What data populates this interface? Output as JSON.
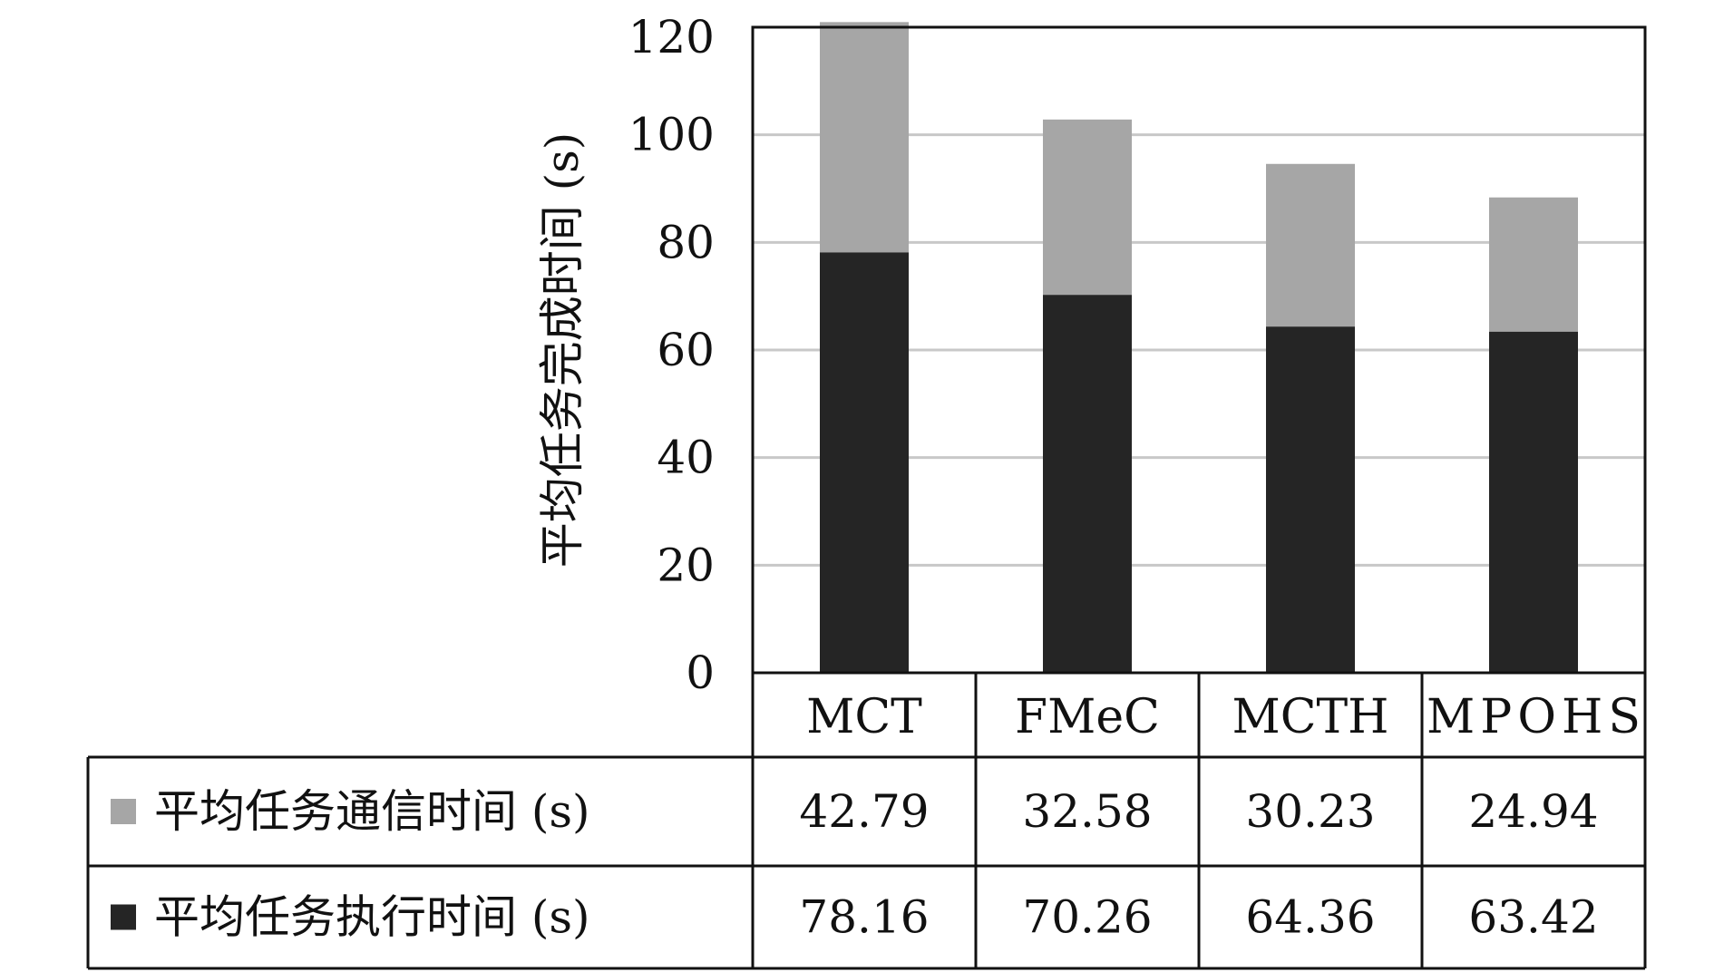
{
  "chart_data": {
    "type": "bar",
    "stacked": true,
    "categories": [
      "MCT",
      "FMeC",
      "MCTH",
      "MPOHS"
    ],
    "series": [
      {
        "name": "平均任务执行时间 (s)",
        "values": [
          78.16,
          70.26,
          64.36,
          63.42
        ],
        "color": "#252525",
        "legend_icon": "square-marker"
      },
      {
        "name": "平均任务通信时间 (s)",
        "values": [
          42.79,
          32.58,
          30.23,
          24.94
        ],
        "color": "#a6a6a6",
        "legend_icon": "square-marker"
      }
    ],
    "table_rows": [
      {
        "label": "平均任务通信时间 (s)",
        "values": [
          "42.79",
          "32.58",
          "30.23",
          "24.94"
        ],
        "color": "#a6a6a6"
      },
      {
        "label": "平均任务执行时间 (s)",
        "values": [
          "78.16",
          "70.26",
          "64.36",
          "63.42"
        ],
        "color": "#252525"
      }
    ],
    "ylabel": "平均任务完成时间 (s)",
    "ylim": [
      0,
      120
    ],
    "yticks": [
      "0",
      "20",
      "40",
      "60",
      "80",
      "100",
      "120"
    ],
    "grid": true,
    "legend": "data-table-below"
  }
}
